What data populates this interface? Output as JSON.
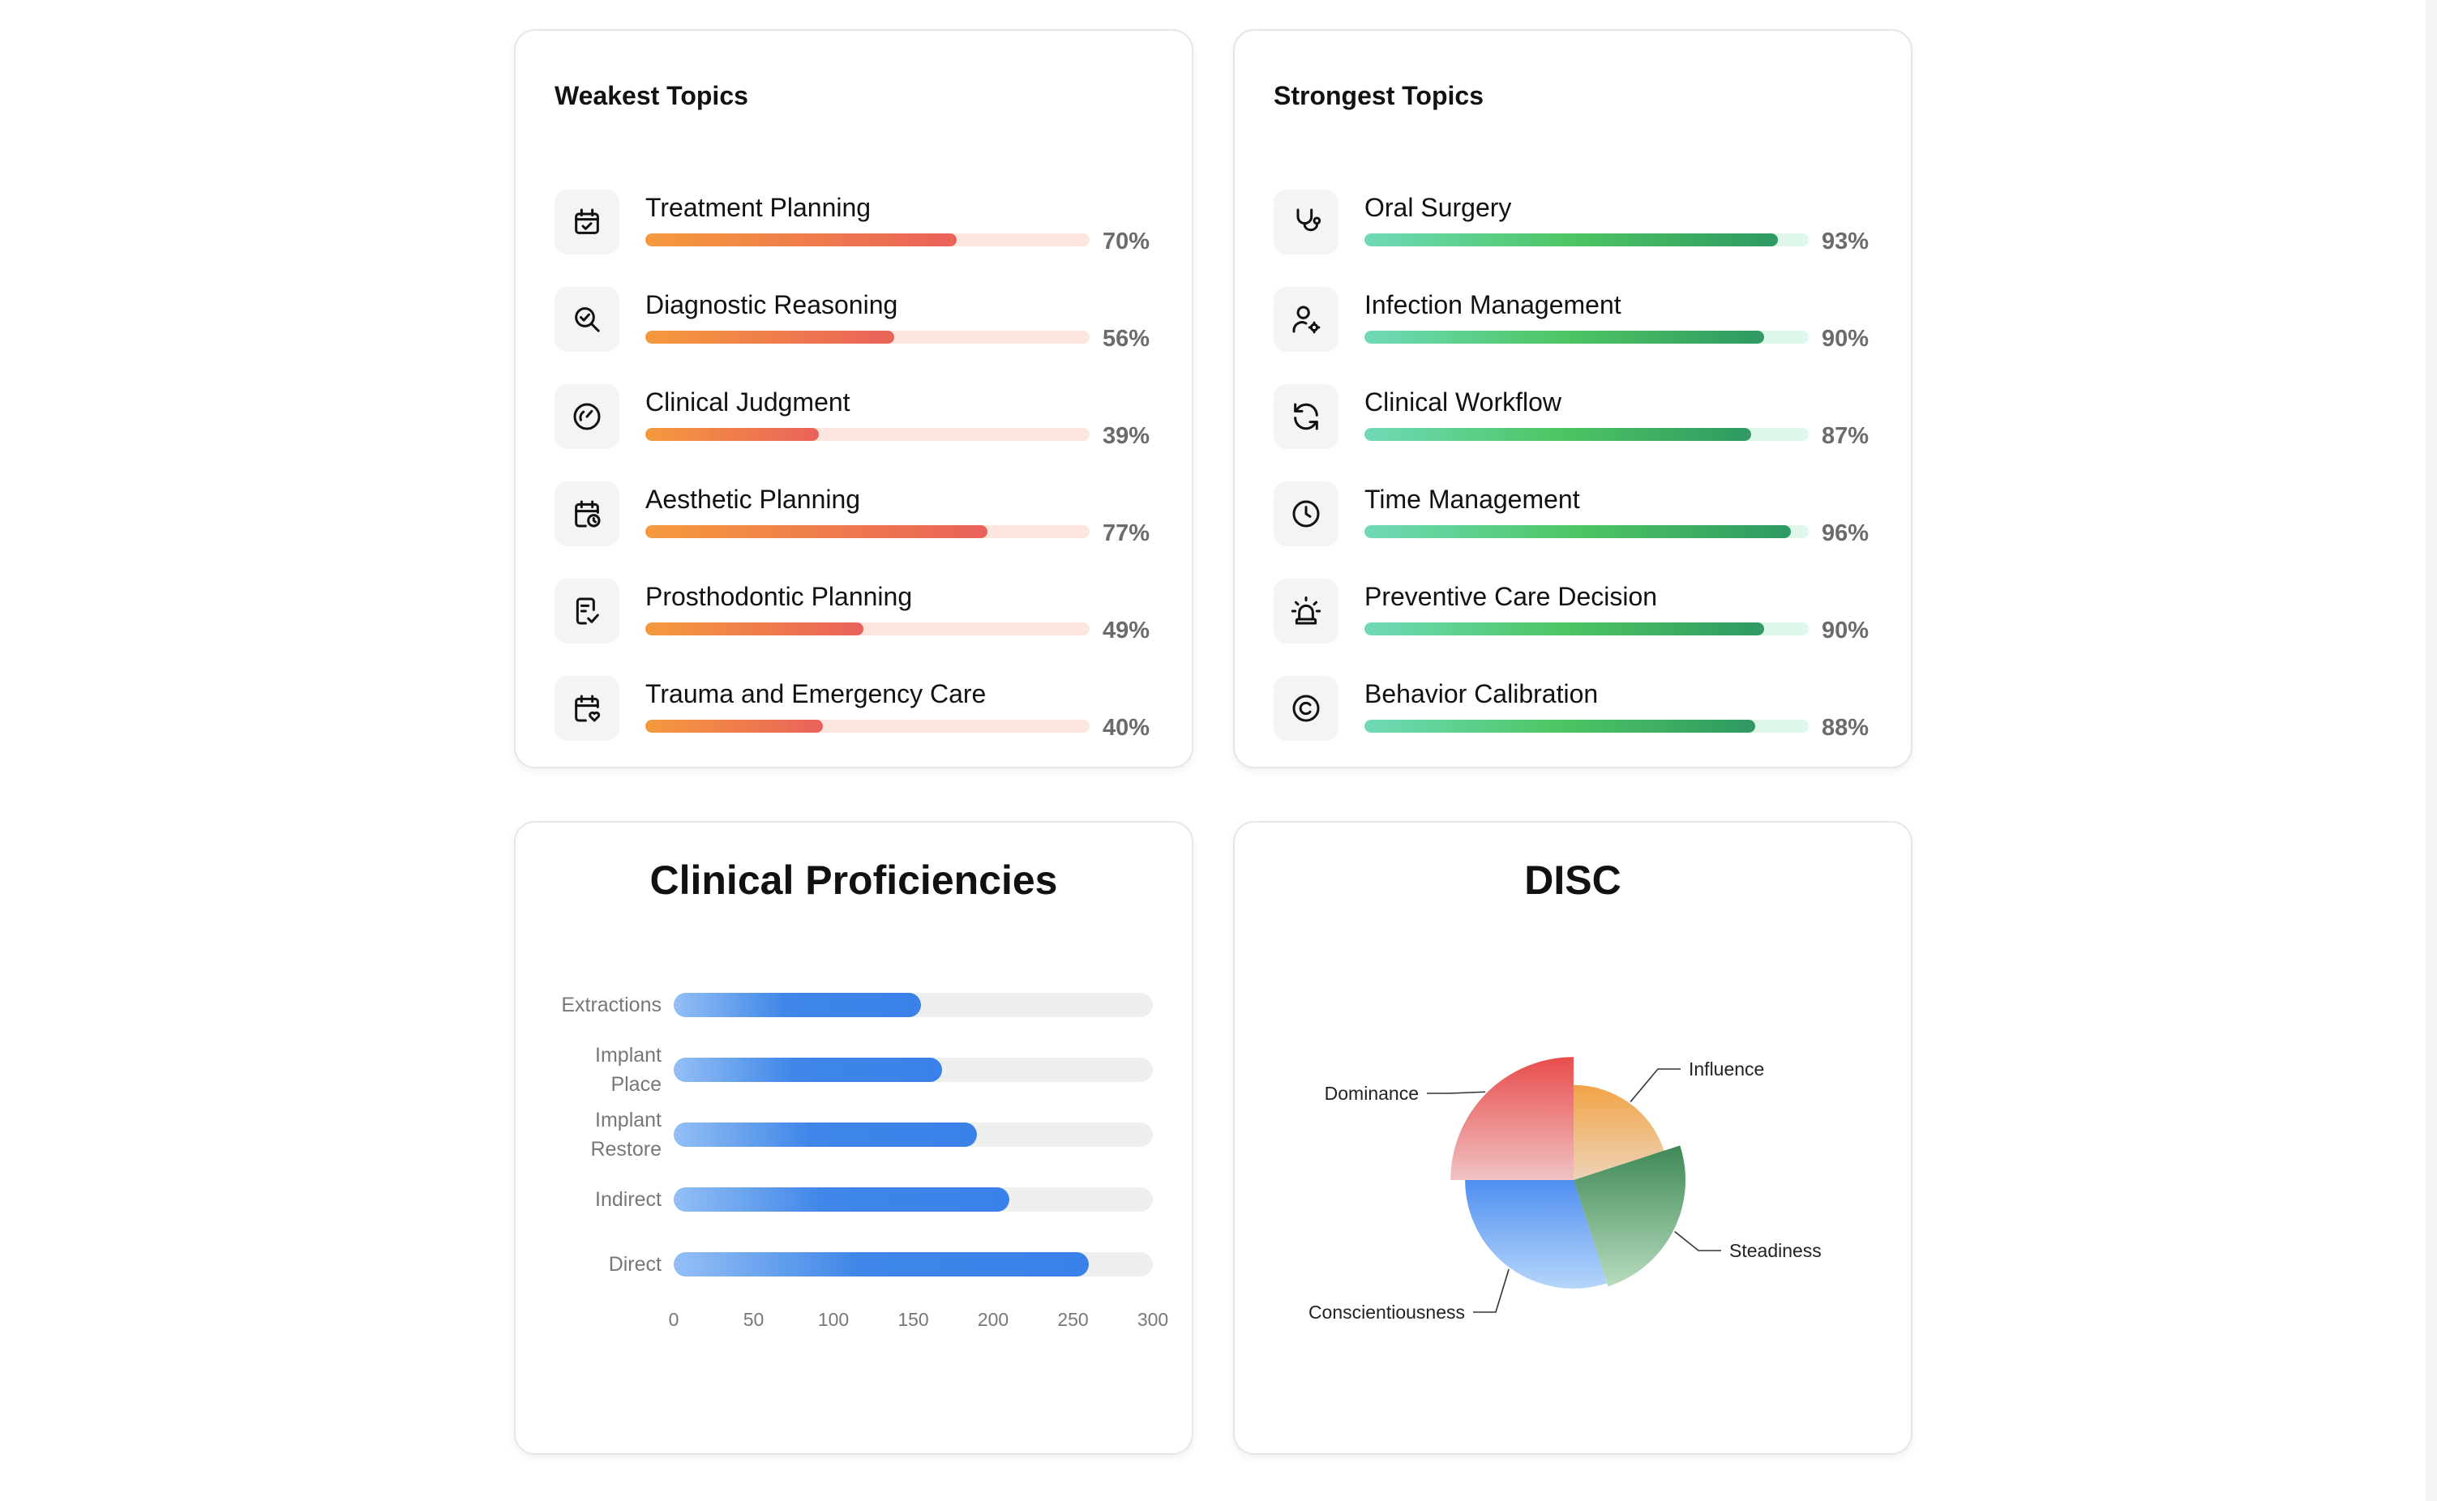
{
  "weakest": {
    "title": "Weakest Topics",
    "items": [
      {
        "label": "Treatment Planning",
        "pct": "70%",
        "value": 70,
        "icon": "calendar-check-icon"
      },
      {
        "label": "Diagnostic Reasoning",
        "pct": "56%",
        "value": 56,
        "icon": "search-check-icon"
      },
      {
        "label": "Clinical Judgment",
        "pct": "39%",
        "value": 39,
        "icon": "gauge-icon"
      },
      {
        "label": "Aesthetic Planning",
        "pct": "77%",
        "value": 77,
        "icon": "calendar-clock-icon"
      },
      {
        "label": "Prosthodontic Planning",
        "pct": "49%",
        "value": 49,
        "icon": "clipboard-check-icon"
      },
      {
        "label": "Trauma and Emergency Care",
        "pct": "40%",
        "value": 40,
        "icon": "calendar-heart-icon"
      }
    ]
  },
  "strongest": {
    "title": "Strongest Topics",
    "items": [
      {
        "label": "Oral Surgery",
        "pct": "93%",
        "value": 93,
        "icon": "stethoscope-icon"
      },
      {
        "label": "Infection Management",
        "pct": "90%",
        "value": 90,
        "icon": "user-cog-icon"
      },
      {
        "label": "Clinical Workflow",
        "pct": "87%",
        "value": 87,
        "icon": "refresh-icon"
      },
      {
        "label": "Time Management",
        "pct": "96%",
        "value": 96,
        "icon": "clock-icon"
      },
      {
        "label": "Preventive Care Decision",
        "pct": "90%",
        "value": 90,
        "icon": "siren-icon"
      },
      {
        "label": "Behavior Calibration",
        "pct": "88%",
        "value": 88,
        "icon": "copyright-icon"
      }
    ]
  },
  "chart_data": [
    {
      "type": "bar",
      "orientation": "horizontal",
      "title": "Clinical Proficiencies",
      "categories": [
        [
          "Extractions"
        ],
        [
          "Implant",
          "Place"
        ],
        [
          "Implant",
          "Restore"
        ],
        [
          "Indirect"
        ],
        [
          "Direct"
        ]
      ],
      "values": [
        155,
        168,
        190,
        210,
        260
      ],
      "xlim": [
        0,
        300
      ],
      "ticks": [
        "0",
        "50",
        "100",
        "150",
        "200",
        "250",
        "300"
      ],
      "grid": false,
      "bar_color": "#3a82ea",
      "track_color": "#efefef"
    },
    {
      "type": "pie",
      "title": "DISC",
      "labels": [
        "Influence",
        "Steadiness",
        "Conscientiousness",
        "Dominance"
      ],
      "values": [
        20,
        25,
        30,
        25
      ],
      "radius_scale": [
        0.85,
        1.0,
        0.97,
        1.1
      ],
      "colors": [
        "#f2a445",
        "#3e8856",
        "#4f8ff0",
        "#e84c4c"
      ]
    }
  ]
}
